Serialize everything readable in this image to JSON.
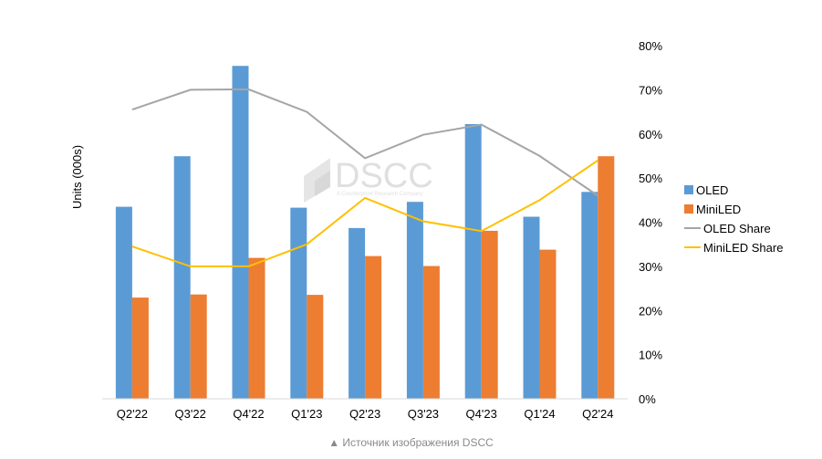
{
  "chart_data": {
    "type": "bar",
    "categories": [
      "Q2'22",
      "Q3'22",
      "Q4'22",
      "Q1'23",
      "Q2'23",
      "Q3'23",
      "Q4'23",
      "Q1'24",
      "Q2'24"
    ],
    "ylabel": "Units  (000s)",
    "y2lim": [
      0,
      80
    ],
    "y2ticks": [
      "0%",
      "10%",
      "20%",
      "30%",
      "40%",
      "50%",
      "60%",
      "70%",
      "80%"
    ],
    "legend_position": "right",
    "grid": false,
    "series": [
      {
        "name": "OLED",
        "kind": "bar",
        "axis": "left",
        "color": "#5b9bd5",
        "values": [
          42.5,
          53.7,
          73.7,
          42.3,
          37.8,
          43.6,
          60.8,
          40.3,
          45.8
        ]
      },
      {
        "name": "MiniLED",
        "kind": "bar",
        "axis": "left",
        "color": "#ed7d31",
        "values": [
          22.4,
          23.1,
          31.2,
          23.0,
          31.6,
          29.4,
          37.2,
          33.0,
          53.7
        ]
      },
      {
        "name": "OLED Share",
        "kind": "line",
        "axis": "right",
        "color": "#a5a5a5",
        "values": [
          65.5,
          70.0,
          70.1,
          65.0,
          54.5,
          59.8,
          62.1,
          55.0,
          46.0
        ]
      },
      {
        "name": "MiniLED Share",
        "kind": "line",
        "axis": "right",
        "color": "#ffc000",
        "values": [
          34.5,
          30.0,
          30.0,
          35.0,
          45.5,
          40.2,
          38.0,
          45.0,
          54.0
        ]
      }
    ]
  },
  "watermark": {
    "text": "DSCC",
    "subtext": "A Counterpoint Research Company"
  },
  "caption": "▲ Источник изображения DSCC"
}
